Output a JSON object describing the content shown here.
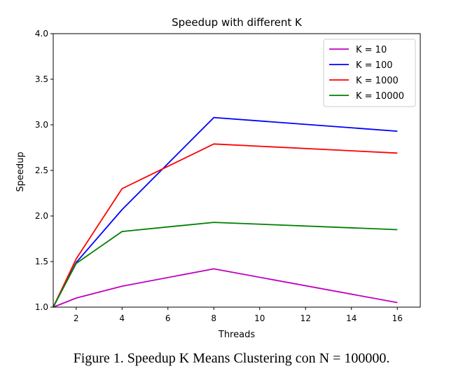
{
  "chart_data": {
    "type": "line",
    "title": "Speedup with different K",
    "xlabel": "Threads",
    "ylabel": "Speedup",
    "x": [
      1,
      2,
      4,
      8,
      16
    ],
    "xlim": [
      1,
      17
    ],
    "ylim": [
      1.0,
      4.0
    ],
    "xticks": [
      2,
      4,
      6,
      8,
      10,
      12,
      14,
      16
    ],
    "yticks": [
      1.0,
      1.5,
      2.0,
      2.5,
      3.0,
      3.5,
      4.0
    ],
    "ytick_labels": [
      "1.0",
      "1.5",
      "2.0",
      "2.5",
      "3.0",
      "3.5",
      "4.0"
    ],
    "legend_position": "top-right",
    "grid": false,
    "series": [
      {
        "name": "K = 10",
        "color": "#bf00bf",
        "values": [
          1.0,
          1.1,
          1.23,
          1.42,
          1.05
        ]
      },
      {
        "name": "K = 100",
        "color": "#0000ff",
        "values": [
          1.0,
          1.49,
          2.07,
          3.08,
          2.93
        ]
      },
      {
        "name": "K = 1000",
        "color": "#ff0000",
        "values": [
          1.0,
          1.53,
          2.3,
          2.79,
          2.69
        ]
      },
      {
        "name": "K = 10000",
        "color": "#008000",
        "values": [
          1.0,
          1.48,
          1.83,
          1.93,
          1.85
        ]
      }
    ]
  },
  "caption": "Figure 1. Speedup K Means Clustering con N = 100000."
}
